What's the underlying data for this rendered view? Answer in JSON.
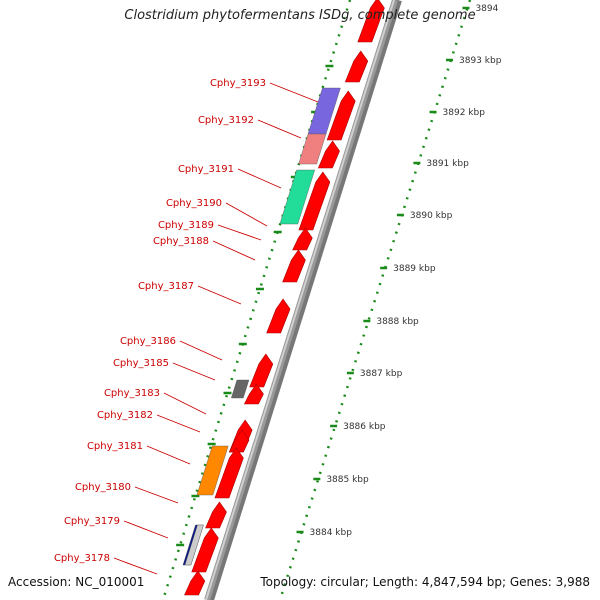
{
  "title": "Clostridium phytofermentans ISDg, complete genome",
  "accession_text": "Accession: NC_010001",
  "summary_text": "Topology: circular; Length: 4,847,594 bp; Genes: 3,988",
  "colors": {
    "forward_gene": "#ff0000",
    "backbone": "#999999",
    "ruler_dots": "#1a8a1a",
    "label": "#cc0000",
    "kbp_text": "#333333"
  },
  "scale_labels": [
    "3894",
    "3893 kbp",
    "3892 kbp",
    "3891 kbp",
    "3890 kbp",
    "3889 kbp",
    "3888 kbp",
    "3887 kbp",
    "3886 kbp",
    "3885 kbp",
    "3884 kbp"
  ],
  "gene_labels": [
    "Cphy_3193",
    "Cphy_3192",
    "Cphy_3191",
    "Cphy_3190",
    "Cphy_3189",
    "Cphy_3188",
    "Cphy_3187",
    "Cphy_3186",
    "Cphy_3185",
    "Cphy_3183",
    "Cphy_3182",
    "Cphy_3181",
    "Cphy_3180",
    "Cphy_3179",
    "Cphy_3178"
  ],
  "highlight_boxes": [
    {
      "gene": "Cphy_3193",
      "color": "#7766dd"
    },
    {
      "gene": "Cphy_3192",
      "color": "#f08080"
    },
    {
      "gene": "Cphy_3191",
      "color": "#22dd99"
    },
    {
      "gene": "Cphy_3185",
      "color": "#666666"
    },
    {
      "gene": "Cphy_3181",
      "color": "#ff8800"
    },
    {
      "gene": "Cphy_3179",
      "color": "#0a1a88"
    },
    {
      "gene": "Cphy_3179",
      "color": "#cccccc"
    }
  ]
}
